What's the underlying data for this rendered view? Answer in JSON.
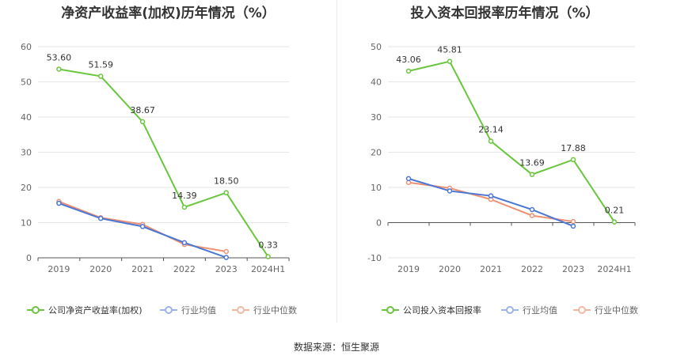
{
  "source_label": "数据来源：恒生聚源",
  "colors": {
    "company": "#6ac63c",
    "industry_avg": "#4a77d4",
    "industry_median": "#ef9173",
    "grid": "#e6e6e6",
    "axis": "#555555"
  },
  "chart_data": [
    {
      "type": "line",
      "title": "净资产收益率(加权)历年情况（%）",
      "categories": [
        "2019",
        "2020",
        "2021",
        "2022",
        "2023",
        "2024H1"
      ],
      "ylim": [
        0,
        60
      ],
      "yticks": [
        0,
        10,
        20,
        30,
        40,
        50,
        60
      ],
      "grid": true,
      "legend_position": "bottom",
      "series": [
        {
          "name": "公司净资产收益率(加权)",
          "color": "#6ac63c",
          "values": [
            53.6,
            51.59,
            38.67,
            14.39,
            18.5,
            0.33
          ],
          "labels": [
            "53.60",
            "51.59",
            "38.67",
            "14.39",
            "18.50",
            "0.33"
          ]
        },
        {
          "name": "行业均值",
          "color": "#4a77d4",
          "values": [
            15.5,
            11.2,
            8.9,
            4.3,
            0.1,
            null
          ]
        },
        {
          "name": "行业中位数",
          "color": "#ef9173",
          "values": [
            16.0,
            11.4,
            9.5,
            3.8,
            1.8,
            null
          ]
        }
      ]
    },
    {
      "type": "line",
      "title": "投入资本回报率历年情况（%）",
      "categories": [
        "2019",
        "2020",
        "2021",
        "2022",
        "2023",
        "2024H1"
      ],
      "ylim": [
        -10,
        50
      ],
      "yticks": [
        -10,
        0,
        10,
        20,
        30,
        40,
        50
      ],
      "grid": true,
      "legend_position": "bottom",
      "series": [
        {
          "name": "公司投入资本回报率",
          "color": "#6ac63c",
          "values": [
            43.06,
            45.81,
            23.14,
            13.69,
            17.88,
            0.21
          ],
          "labels": [
            "43.06",
            "45.81",
            "23.14",
            "13.69",
            "17.88",
            "0.21"
          ]
        },
        {
          "name": "行业均值",
          "color": "#4a77d4",
          "values": [
            12.5,
            9.0,
            7.6,
            3.7,
            -1.0,
            null
          ]
        },
        {
          "name": "行业中位数",
          "color": "#ef9173",
          "values": [
            11.4,
            9.8,
            6.6,
            2.0,
            0.3,
            null
          ]
        }
      ]
    }
  ]
}
